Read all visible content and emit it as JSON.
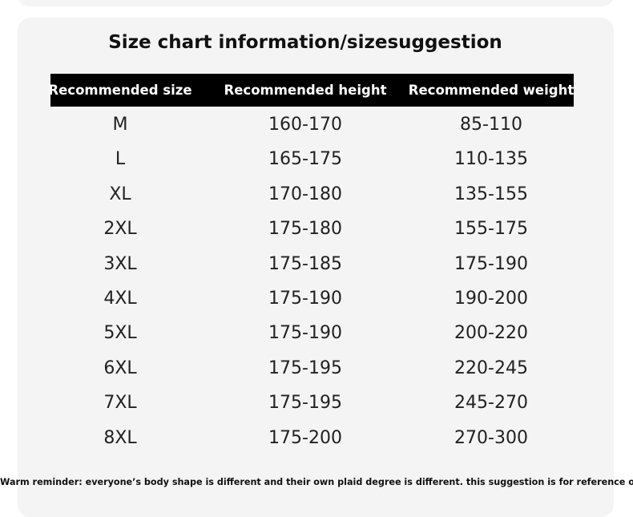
{
  "header": {
    "title": "Size chart information/sizesuggestion"
  },
  "table": {
    "columns": [
      "Recommended size",
      "Recommended height",
      "Recommended weight"
    ],
    "rows": [
      [
        "M",
        "160-170",
        "85-110"
      ],
      [
        "L",
        "165-175",
        "110-135"
      ],
      [
        "XL",
        "170-180",
        "135-155"
      ],
      [
        "2XL",
        "175-180",
        "155-175"
      ],
      [
        "3XL",
        "175-185",
        "175-190"
      ],
      [
        "4XL",
        "175-190",
        "190-200"
      ],
      [
        "5XL",
        "175-190",
        "200-220"
      ],
      [
        "6XL",
        "175-195",
        "220-245"
      ],
      [
        "7XL",
        "175-195",
        "245-270"
      ],
      [
        "8XL",
        "175-200",
        "270-300"
      ]
    ]
  },
  "footer": {
    "note": "Warm reminder: everyone’s body shape is different and their own plaid degree is different. this suggestion is for reference only"
  }
}
